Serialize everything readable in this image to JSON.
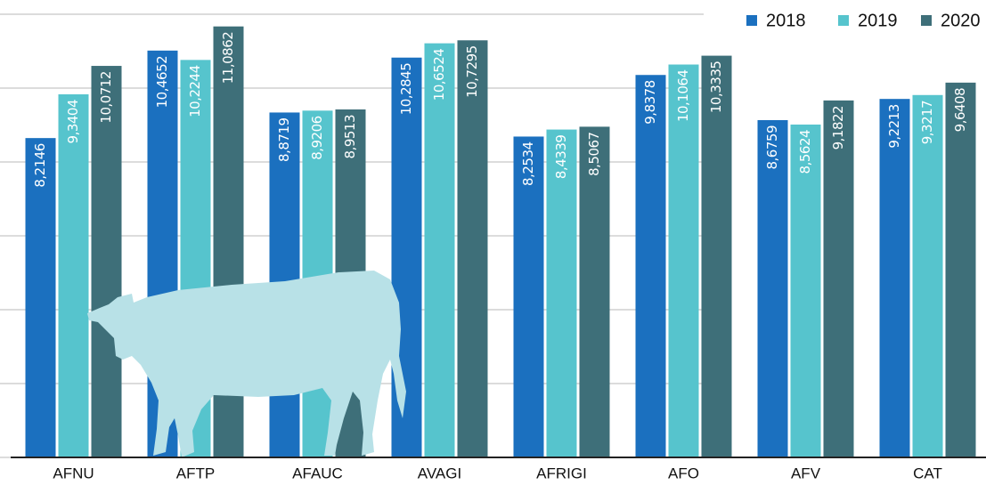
{
  "chart_data": {
    "type": "bar",
    "categories": [
      "AFNU",
      "AFTP",
      "AFAUC",
      "AVAGI",
      "AFRIGI",
      "AFO",
      "AFV",
      "CAT"
    ],
    "series": [
      {
        "name": "2018",
        "color": "#1b70bf",
        "values": [
          8.2146,
          10.4652,
          8.8719,
          10.2845,
          8.2534,
          9.8378,
          8.6759,
          9.2213
        ],
        "value_labels": [
          "8,2146",
          "10,4652",
          "8,8719",
          "10,2845",
          "8,2534",
          "9,8378",
          "8,6759",
          "9,2213"
        ]
      },
      {
        "name": "2019",
        "color": "#56c4cd",
        "values": [
          9.3404,
          10.2244,
          8.9206,
          10.6524,
          8.4339,
          10.1064,
          8.5624,
          9.3217
        ],
        "value_labels": [
          "9,3404",
          "10,2244",
          "8,9206",
          "10,6524",
          "8,4339",
          "10,1064",
          "8,5624",
          "9,3217"
        ]
      },
      {
        "name": "2020",
        "color": "#3e6f79",
        "values": [
          10.0712,
          11.0862,
          8.9513,
          10.7295,
          8.5067,
          10.3335,
          9.1822,
          9.6408
        ],
        "value_labels": [
          "10,0712",
          "11,0862",
          "8,9513",
          "10,7295",
          "8,5067",
          "10,3335",
          "9,1822",
          "9,6408"
        ]
      }
    ],
    "ylim": [
      0,
      11.4
    ],
    "yticks": [
      0,
      1.9,
      3.8,
      5.7,
      7.6,
      9.5,
      11.4
    ],
    "grid": true,
    "legend": "top-right"
  }
}
